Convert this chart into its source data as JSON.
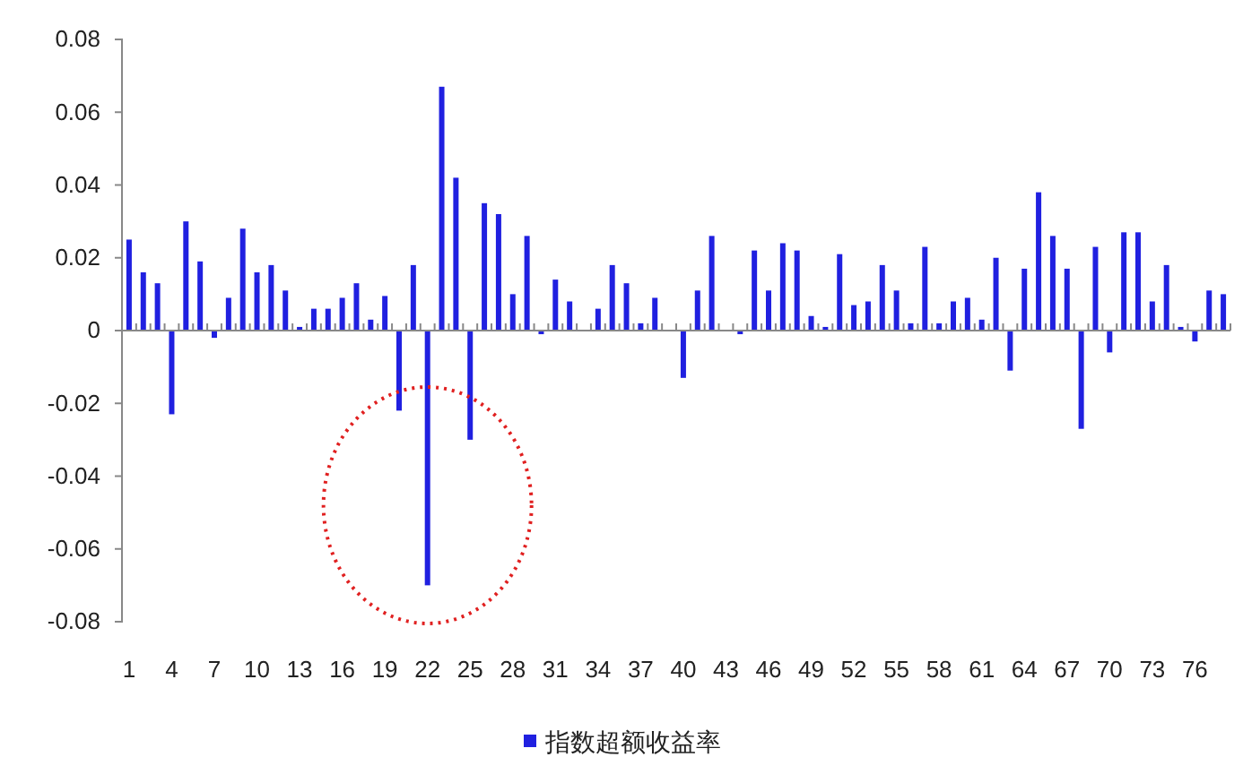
{
  "chart_data": {
    "type": "bar",
    "categories": [
      "1",
      null,
      null,
      "4",
      null,
      null,
      "7",
      null,
      null,
      "10",
      null,
      null,
      "13",
      null,
      null,
      "16",
      null,
      null,
      "19",
      null,
      null,
      "22",
      null,
      null,
      "25",
      null,
      null,
      "28",
      null,
      null,
      "31",
      null,
      null,
      "34",
      null,
      null,
      "37",
      null,
      null,
      "40",
      null,
      null,
      "43",
      null,
      null,
      "46",
      null,
      null,
      "49",
      null,
      null,
      "52",
      null,
      null,
      "55",
      null,
      null,
      "58",
      null,
      null,
      "61",
      null,
      null,
      "64",
      null,
      null,
      "67",
      null,
      null,
      "70",
      null,
      null,
      "73",
      null,
      null,
      "76",
      null,
      null
    ],
    "series": [
      {
        "name": "指数超额收益率",
        "color": "#2020e0",
        "values": [
          0.025,
          0.016,
          0.013,
          -0.023,
          0.03,
          0.019,
          -0.002,
          0.009,
          0.028,
          0.016,
          0.018,
          0.011,
          0.001,
          0.006,
          0.006,
          0.009,
          0.013,
          0.003,
          0.0095,
          -0.022,
          0.018,
          -0.07,
          0.067,
          0.042,
          -0.03,
          0.035,
          0.032,
          0.01,
          0.026,
          -0.001,
          0.014,
          0.008,
          0,
          0.006,
          0.018,
          0.013,
          0.002,
          0.009,
          0,
          -0.013,
          0.011,
          0.026,
          0,
          -0.001,
          0.022,
          0.011,
          0.024,
          0.022,
          0.004,
          0.001,
          0.021,
          0.007,
          0.008,
          0.018,
          0.011,
          0.002,
          0.023,
          0.002,
          0.008,
          0.009,
          0.003,
          0.02,
          -0.011,
          0.017,
          0.038,
          0.026,
          0.017,
          -0.027,
          0.023,
          -0.006,
          0.027,
          0.027,
          0.008,
          0.018,
          0.001,
          -0.003,
          0.011,
          0.01
        ]
      }
    ],
    "ylim": [
      -0.08,
      0.08
    ],
    "yticks": [
      -0.08,
      -0.06,
      -0.04,
      -0.02,
      0,
      0.02,
      0.04,
      0.06,
      0.08
    ],
    "legend": "bottom"
  }
}
